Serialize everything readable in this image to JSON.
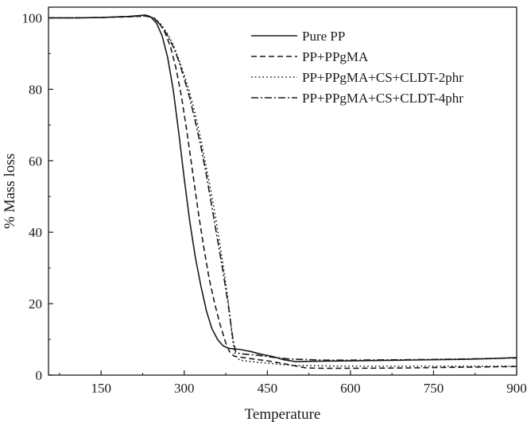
{
  "chart_data": {
    "type": "line",
    "title": "",
    "xlabel": "Temperature",
    "ylabel": "% Mass loss",
    "xlim": [
      55,
      900
    ],
    "ylim": [
      0,
      103
    ],
    "x_ticks": [
      150,
      300,
      450,
      600,
      750,
      900
    ],
    "y_ticks": [
      0,
      20,
      40,
      60,
      80,
      100
    ],
    "grid": false,
    "legend_position": "top-right",
    "series": [
      {
        "name": "Pure PP",
        "style": "solid",
        "points": [
          [
            55,
            100
          ],
          [
            100,
            100
          ],
          [
            150,
            100.1
          ],
          [
            200,
            100.4
          ],
          [
            230,
            100.8
          ],
          [
            240,
            100.2
          ],
          [
            250,
            98.5
          ],
          [
            260,
            95
          ],
          [
            270,
            89
          ],
          [
            280,
            80
          ],
          [
            290,
            68
          ],
          [
            300,
            55
          ],
          [
            310,
            43
          ],
          [
            320,
            33
          ],
          [
            330,
            25
          ],
          [
            340,
            18
          ],
          [
            350,
            13
          ],
          [
            360,
            10
          ],
          [
            370,
            8.2
          ],
          [
            380,
            7.5
          ],
          [
            400,
            7.2
          ],
          [
            420,
            6.6
          ],
          [
            440,
            5.8
          ],
          [
            460,
            5.2
          ],
          [
            480,
            4.3
          ],
          [
            500,
            3.8
          ],
          [
            550,
            3.9
          ],
          [
            600,
            4.0
          ],
          [
            700,
            4.2
          ],
          [
            800,
            4.4
          ],
          [
            850,
            4.6
          ],
          [
            900,
            4.9
          ]
        ]
      },
      {
        "name": "PP+PPgMA",
        "style": "dashed",
        "points": [
          [
            55,
            100
          ],
          [
            100,
            100
          ],
          [
            150,
            100.1
          ],
          [
            200,
            100.3
          ],
          [
            230,
            100.5
          ],
          [
            245,
            100
          ],
          [
            255,
            98.5
          ],
          [
            265,
            96
          ],
          [
            275,
            92
          ],
          [
            285,
            86
          ],
          [
            295,
            78
          ],
          [
            305,
            68
          ],
          [
            315,
            57
          ],
          [
            325,
            46
          ],
          [
            335,
            36
          ],
          [
            345,
            27
          ],
          [
            355,
            20
          ],
          [
            365,
            14
          ],
          [
            375,
            9
          ],
          [
            382,
            6.5
          ],
          [
            390,
            5.3
          ],
          [
            420,
            4.6
          ],
          [
            450,
            4.0
          ],
          [
            480,
            3.2
          ],
          [
            500,
            2.6
          ],
          [
            520,
            2.0
          ],
          [
            550,
            1.9
          ],
          [
            600,
            1.9
          ],
          [
            700,
            2.0
          ],
          [
            800,
            2.2
          ],
          [
            900,
            2.4
          ]
        ]
      },
      {
        "name": "PP+PPgMA+CS+CLDT-2phr",
        "style": "dotted",
        "points": [
          [
            55,
            100
          ],
          [
            100,
            100
          ],
          [
            150,
            100.1
          ],
          [
            200,
            100.4
          ],
          [
            235,
            100.6
          ],
          [
            250,
            99.5
          ],
          [
            260,
            97.8
          ],
          [
            270,
            95.5
          ],
          [
            280,
            92.5
          ],
          [
            290,
            88.5
          ],
          [
            300,
            84
          ],
          [
            310,
            79
          ],
          [
            320,
            73
          ],
          [
            330,
            66
          ],
          [
            340,
            58
          ],
          [
            350,
            50
          ],
          [
            360,
            41
          ],
          [
            370,
            31
          ],
          [
            380,
            20
          ],
          [
            387,
            10
          ],
          [
            392,
            5.5
          ],
          [
            400,
            4.2
          ],
          [
            420,
            3.8
          ],
          [
            440,
            3.5
          ],
          [
            460,
            3.2
          ],
          [
            480,
            2.9
          ],
          [
            500,
            2.7
          ],
          [
            550,
            2.6
          ],
          [
            600,
            2.5
          ],
          [
            700,
            2.5
          ],
          [
            800,
            2.5
          ],
          [
            900,
            2.5
          ]
        ]
      },
      {
        "name": "PP+PPgMA+CS+CLDT-4phr",
        "style": "dashdot",
        "points": [
          [
            55,
            100
          ],
          [
            100,
            100
          ],
          [
            150,
            100.1
          ],
          [
            200,
            100.4
          ],
          [
            235,
            100.6
          ],
          [
            250,
            99.2
          ],
          [
            260,
            97.5
          ],
          [
            270,
            95
          ],
          [
            280,
            92
          ],
          [
            290,
            88
          ],
          [
            300,
            83
          ],
          [
            310,
            77.5
          ],
          [
            320,
            71
          ],
          [
            330,
            64
          ],
          [
            340,
            56
          ],
          [
            350,
            47
          ],
          [
            360,
            38
          ],
          [
            370,
            29
          ],
          [
            380,
            19
          ],
          [
            388,
            10
          ],
          [
            393,
            6.5
          ],
          [
            400,
            6.0
          ],
          [
            430,
            5.6
          ],
          [
            460,
            5.0
          ],
          [
            490,
            4.5
          ],
          [
            550,
            4.2
          ],
          [
            600,
            4.2
          ],
          [
            700,
            4.3
          ],
          [
            800,
            4.5
          ],
          [
            900,
            4.8
          ]
        ]
      }
    ]
  }
}
